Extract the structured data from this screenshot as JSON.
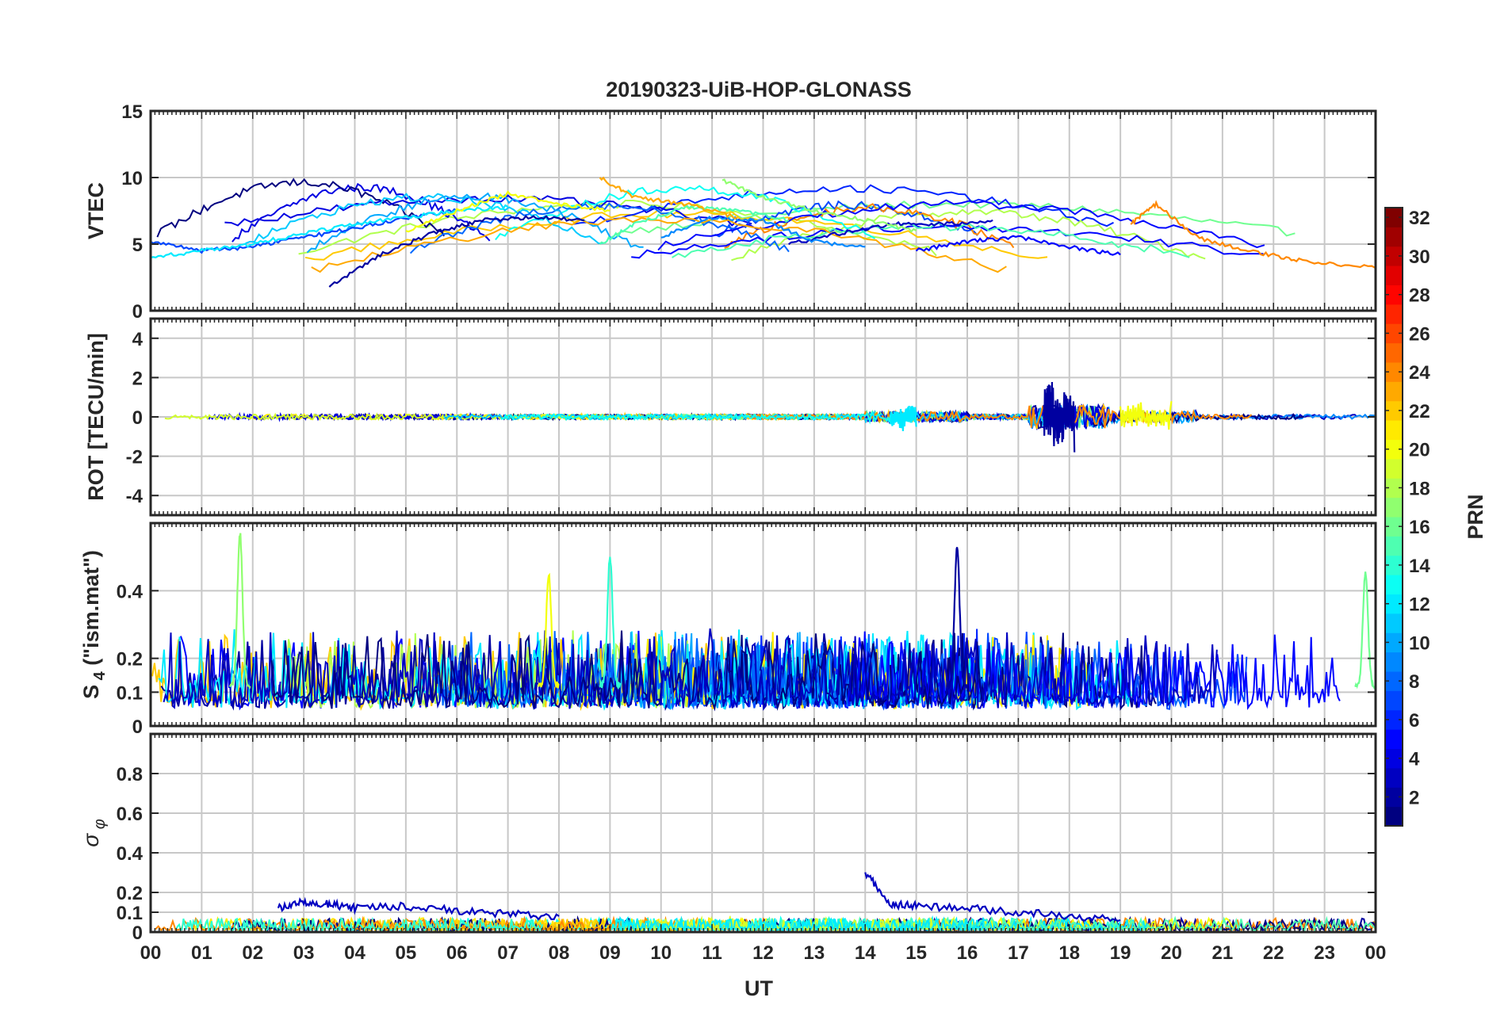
{
  "chart_data": {
    "type": "line",
    "title": "20190323-UiB-HOP-GLONASS",
    "xlabel": "UT",
    "x_ticks": [
      "00",
      "01",
      "02",
      "03",
      "04",
      "05",
      "06",
      "07",
      "08",
      "09",
      "10",
      "11",
      "12",
      "13",
      "14",
      "15",
      "16",
      "17",
      "18",
      "19",
      "20",
      "21",
      "22",
      "23",
      "00"
    ],
    "xlim": [
      0,
      24
    ],
    "colorbar": {
      "label": "PRN",
      "range": [
        1,
        32
      ],
      "ticks": [
        2,
        4,
        6,
        8,
        10,
        12,
        14,
        16,
        18,
        20,
        22,
        24,
        26,
        28,
        30,
        32
      ],
      "tick_labels": [
        "2",
        "4",
        "6",
        "8",
        "10",
        "12",
        "14",
        "16",
        "18",
        "20",
        "22",
        "24",
        "26",
        "28",
        "30",
        "32"
      ],
      "colormap": "jet"
    },
    "panels": [
      {
        "id": "vtec",
        "ylabel": "VTEC",
        "ylim": [
          0,
          15
        ],
        "y_ticks": [
          0,
          5,
          10,
          15
        ],
        "y_tick_labels": [
          "0",
          "5",
          "10",
          "15"
        ],
        "series": [
          {
            "prn": 2,
            "t": [
              3.5,
              4.5,
              5.5,
              6.5,
              7.5,
              8.5
            ],
            "v": [
              1.8,
              4.2,
              5.8,
              6.8,
              7.0,
              6.8
            ]
          },
          {
            "prn": 3,
            "t": [
              12.5,
              13.5,
              14.5,
              15.5,
              16.5
            ],
            "v": [
              5.0,
              5.8,
              6.5,
              6.5,
              6.8
            ]
          },
          {
            "prn": 5,
            "t": [
              15.0,
              16.0,
              17.0,
              18.0,
              19.0
            ],
            "v": [
              4.5,
              5.2,
              5.5,
              4.8,
              4.2
            ]
          },
          {
            "prn": 7,
            "t": [
              0,
              1,
              2,
              3,
              4,
              5,
              6
            ],
            "v": [
              5.2,
              4.5,
              4.8,
              5.5,
              6.2,
              7.0,
              7.5
            ]
          },
          {
            "prn": 9,
            "t": [
              10,
              11,
              12,
              13,
              14
            ],
            "v": [
              5.5,
              7.0,
              6.8,
              5.2,
              4.8
            ]
          },
          {
            "prn": 12,
            "t": [
              0,
              1,
              2,
              3,
              4,
              5,
              6,
              7
            ],
            "v": [
              4.0,
              4.5,
              5.0,
              5.8,
              6.5,
              7.0,
              7.5,
              7.8
            ]
          },
          {
            "prn": 15,
            "t": [
              8.8,
              9.5,
              10.5,
              11.5,
              12.5
            ],
            "v": [
              5.0,
              6.5,
              7.8,
              7.5,
              6.8
            ]
          },
          {
            "prn": 17,
            "t": [
              11.2,
              12,
              13,
              14,
              15
            ],
            "v": [
              9.8,
              8.5,
              7.5,
              6.8,
              6.0
            ]
          },
          {
            "prn": 20,
            "t": [
              5,
              6,
              7,
              8,
              9
            ],
            "v": [
              6.0,
              7.5,
              8.8,
              8.0,
              7.5
            ]
          },
          {
            "prn": 23,
            "t": [
              8.8,
              9.5,
              10.5,
              11.5
            ],
            "v": [
              10.0,
              8.5,
              8.0,
              7.0
            ]
          },
          {
            "prn": 24,
            "t": [
              19.2,
              19.7,
              20.5,
              21.5,
              22.5,
              24
            ],
            "v": [
              6.5,
              8.0,
              5.5,
              4.5,
              3.8,
              3.2
            ]
          }
        ]
      },
      {
        "id": "rot",
        "ylabel": "ROT [TECU/min]",
        "ylim": [
          -5,
          5
        ],
        "y_ticks": [
          -4,
          -2,
          0,
          2,
          4
        ],
        "y_tick_labels": [
          "-4",
          "-2",
          "0",
          "2",
          "4"
        ],
        "series": [
          {
            "prn": 2,
            "t": [
              17.5,
              17.7,
              17.9,
              18.1
            ],
            "v": [
              1.8,
              -1.5,
              1.3,
              -1.8
            ]
          },
          {
            "prn": 12,
            "t": [
              14.5,
              14.8,
              15.0
            ],
            "v": [
              -0.8,
              0.6,
              -0.5
            ]
          },
          {
            "prn": 20,
            "t": [
              19.0,
              19.5,
              20.0
            ],
            "v": [
              0.9,
              -0.7,
              0.8
            ]
          }
        ]
      },
      {
        "id": "s4",
        "ylabel": "S4 (\"ism.mat\")",
        "ylabel_main": "S",
        "ylabel_sub": "4",
        "ylabel_rest": " (\"ism.mat\")",
        "ylim": [
          0,
          0.6
        ],
        "y_ticks": [
          0,
          0.1,
          0.2,
          0.4
        ],
        "y_tick_labels": [
          "0",
          "0.1",
          "0.2",
          "0.4"
        ],
        "series": [
          {
            "prn": 2,
            "t": [
              15.8
            ],
            "v": [
              0.53
            ]
          },
          {
            "prn": 17,
            "t": [
              1.75
            ],
            "v": [
              0.57
            ]
          },
          {
            "prn": 16,
            "t": [
              23.8
            ],
            "v": [
              0.45
            ]
          },
          {
            "prn": 14,
            "t": [
              9.0
            ],
            "v": [
              0.5
            ]
          },
          {
            "prn": 20,
            "t": [
              7.8
            ],
            "v": [
              0.45
            ]
          }
        ]
      },
      {
        "id": "sigma_phi",
        "ylabel": "σ_φ",
        "ylabel_main": "σ",
        "ylabel_sub": "φ",
        "ylim": [
          0,
          1.0
        ],
        "y_ticks": [
          0,
          0.1,
          0.2,
          0.4,
          0.6,
          0.8
        ],
        "y_tick_labels": [
          "0",
          "0.1",
          "0.2",
          "0.4",
          "0.6",
          "0.8"
        ],
        "series": [
          {
            "prn": 3,
            "t": [
              2.5,
              3.0,
              3.5,
              4.0,
              5.0,
              6.0,
              7.0,
              8.0
            ],
            "v": [
              0.12,
              0.15,
              0.14,
              0.12,
              0.13,
              0.11,
              0.09,
              0.08
            ]
          },
          {
            "prn": 3,
            "t": [
              14.0,
              14.5,
              15.0,
              16.0,
              17.0,
              18.0,
              19.0
            ],
            "v": [
              0.3,
              0.14,
              0.13,
              0.12,
              0.1,
              0.08,
              0.06
            ]
          }
        ]
      }
    ]
  }
}
